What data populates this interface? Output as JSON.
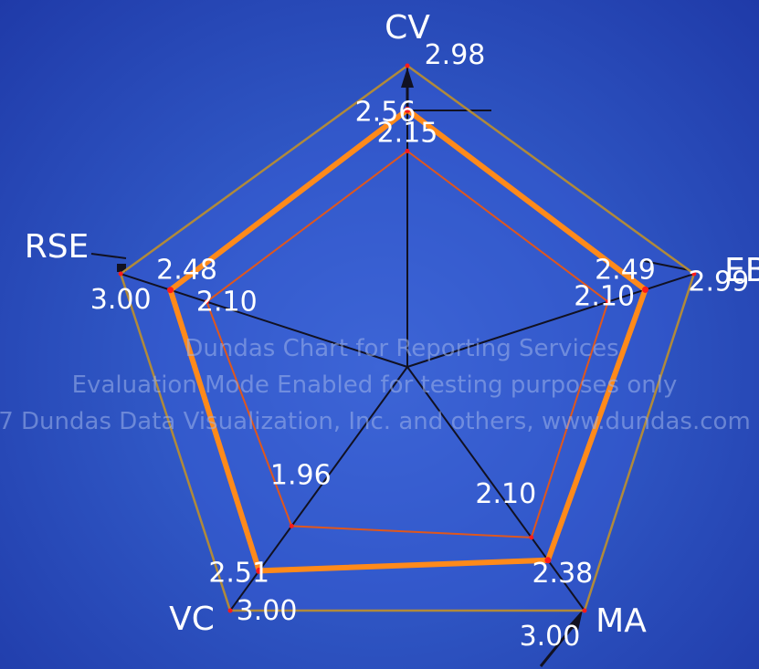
{
  "chart_data": {
    "type": "radar",
    "categories": [
      "CV",
      "EB",
      "MA",
      "VC",
      "RSE"
    ],
    "range": [
      0,
      3
    ],
    "series": [
      {
        "values": [
          3.0,
          3.0,
          3.0,
          3.0,
          3.0
        ],
        "labels": [
          "",
          "",
          "3.00",
          "3.00",
          "3.00"
        ],
        "color": "#b08a3a"
      },
      {
        "values": [
          2.98,
          2.99,
          2.99,
          2.99,
          2.99
        ],
        "labels": [
          "2.98",
          "2.99",
          "",
          "",
          ""
        ],
        "color": "#b08a3a"
      },
      {
        "values": [
          2.56,
          2.49,
          2.38,
          2.51,
          2.48
        ],
        "labels": [
          "2.56",
          "2.49",
          "2.38",
          "2.51",
          "2.48"
        ],
        "color": "#ff8a1a"
      },
      {
        "values": [
          2.15,
          2.1,
          2.1,
          1.96,
          2.1
        ],
        "labels": [
          "2.15",
          "2.10",
          "2.10",
          "1.96",
          "2.10"
        ],
        "color": "#e0571c"
      }
    ]
  },
  "watermark": [
    "Dundas Chart for Reporting Services",
    "Evaluation Mode Enabled for testing purposes only",
    "7 Dundas Data Visualization, Inc. and others, www.dundas.com"
  ]
}
